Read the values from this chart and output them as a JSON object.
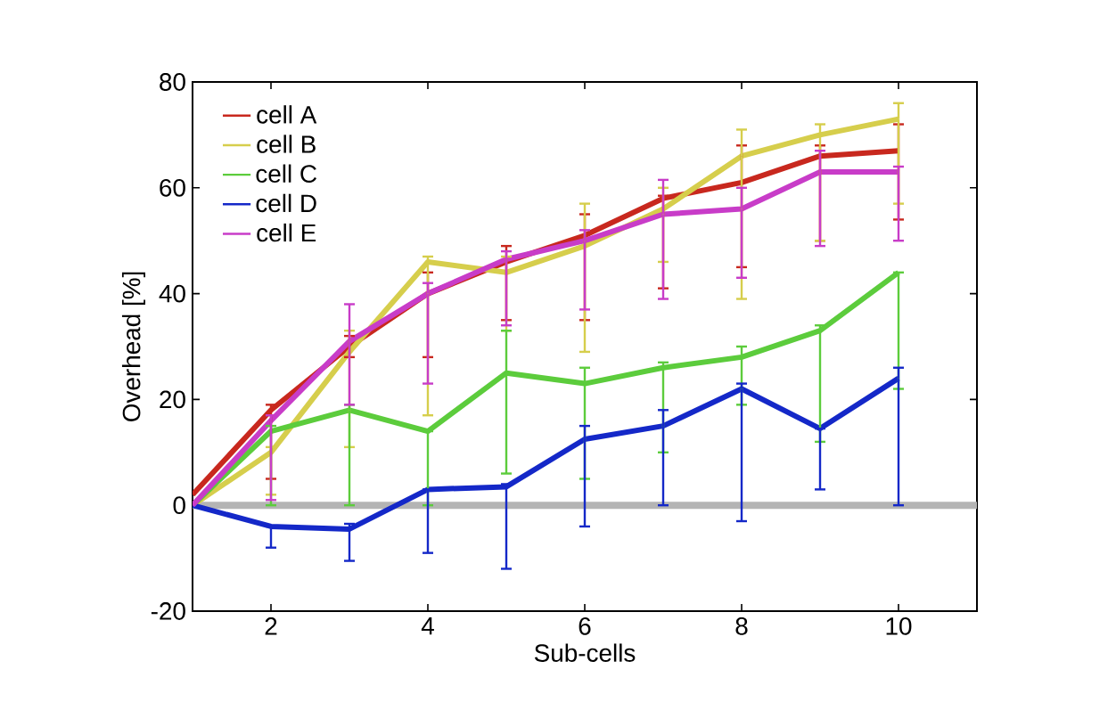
{
  "chart_data": {
    "type": "line",
    "xlabel": "Sub-cells",
    "ylabel": "Overhead [%]",
    "x": [
      1,
      2,
      3,
      4,
      5,
      6,
      7,
      8,
      9,
      10
    ],
    "xlim": [
      1,
      11
    ],
    "ylim": [
      -20,
      80
    ],
    "xticks": [
      2,
      4,
      6,
      8,
      10
    ],
    "yticks": [
      -20,
      0,
      20,
      40,
      60,
      80
    ],
    "legend": "top left",
    "grid": false,
    "marker": "none",
    "line_style": "solid",
    "ref_lines": [
      {
        "axis": "y",
        "value": 0,
        "color": "#b4b4b4"
      }
    ],
    "series": [
      {
        "name": "cell A",
        "color": "#c8281e",
        "values": [
          2,
          18,
          30,
          40,
          46,
          51,
          58,
          61,
          66,
          67
        ],
        "errors": [
          null,
          [
            5,
            19
          ],
          [
            28,
            32
          ],
          [
            28,
            44
          ],
          [
            35,
            49
          ],
          [
            35,
            55
          ],
          [
            41,
            58.5
          ],
          [
            45,
            68
          ],
          [
            50,
            68
          ],
          [
            54,
            72
          ]
        ]
      },
      {
        "name": "cell B",
        "color": "#d6ce4c",
        "values": [
          0,
          10,
          29,
          46,
          44,
          49,
          56,
          66,
          70,
          73
        ],
        "errors": [
          null,
          [
            2,
            11
          ],
          [
            11,
            33
          ],
          [
            17,
            47
          ],
          [
            33,
            47
          ],
          [
            29,
            57
          ],
          [
            46,
            60
          ],
          [
            39,
            71
          ],
          [
            50,
            72
          ],
          [
            57,
            76
          ]
        ]
      },
      {
        "name": "cell C",
        "color": "#5ccc3c",
        "values": [
          0,
          14,
          18,
          14,
          25,
          23,
          26,
          28,
          33,
          44
        ],
        "errors": [
          null,
          [
            0,
            15
          ],
          [
            0,
            19
          ],
          [
            0,
            14
          ],
          [
            6,
            33
          ],
          [
            5,
            26
          ],
          [
            10,
            27
          ],
          [
            19,
            30
          ],
          [
            12,
            34
          ],
          [
            22,
            44
          ]
        ]
      },
      {
        "name": "cell D",
        "color": "#1428c8",
        "values": [
          0,
          -4,
          -4.5,
          3,
          3.5,
          12.5,
          15,
          22,
          14.5,
          24
        ],
        "errors": [
          null,
          [
            -8,
            -4
          ],
          [
            -10.5,
            -3.5
          ],
          [
            -9,
            3
          ],
          [
            -12,
            4
          ],
          [
            -4,
            15
          ],
          [
            0,
            18
          ],
          [
            -3,
            23
          ],
          [
            3,
            14.5
          ],
          [
            0,
            26
          ]
        ]
      },
      {
        "name": "cell E",
        "color": "#c83cc8",
        "values": [
          0,
          16,
          31,
          40,
          46.5,
          50,
          55,
          56,
          63,
          63
        ],
        "errors": [
          null,
          [
            1,
            17
          ],
          [
            19,
            38
          ],
          [
            23,
            42
          ],
          [
            34,
            48
          ],
          [
            37,
            52
          ],
          [
            39,
            61.5
          ],
          [
            43,
            60
          ],
          [
            49,
            67
          ],
          [
            50,
            64
          ]
        ]
      }
    ]
  }
}
